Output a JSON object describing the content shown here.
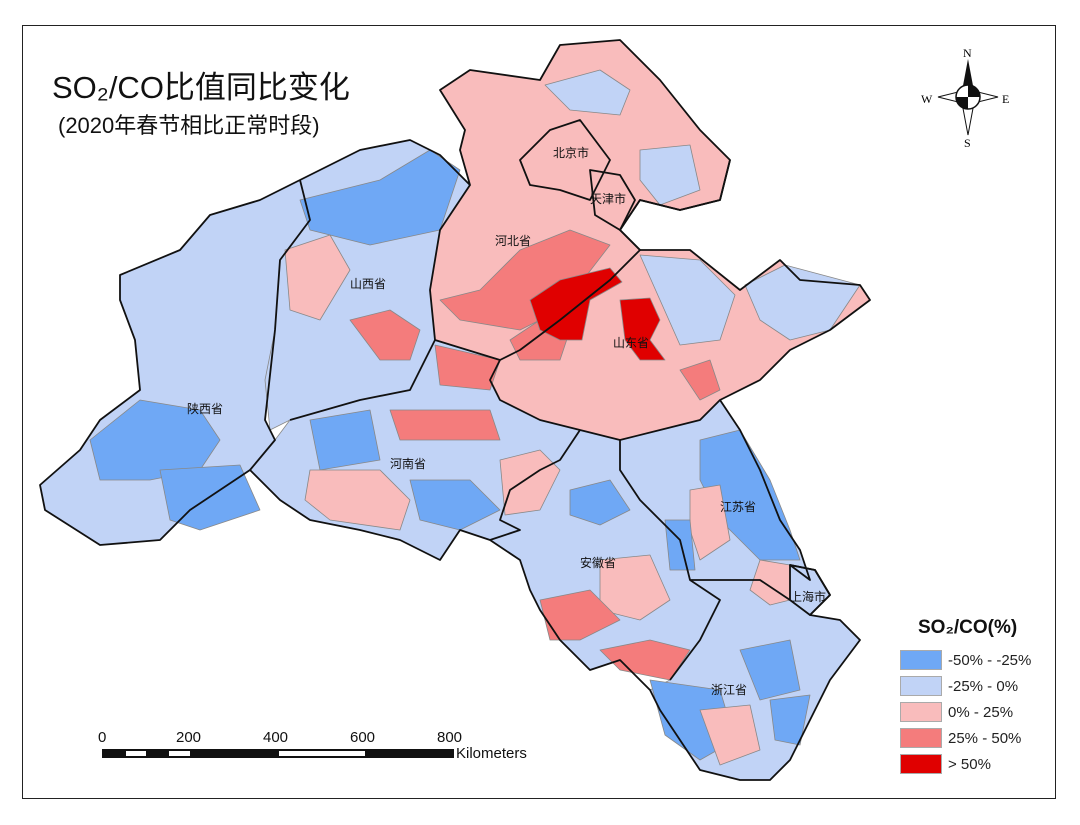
{
  "title": "SO₂/CO比值同比变化",
  "subtitle": "(2020年春节相比正常时段)",
  "provinces": {
    "beijing": "北京市",
    "tianjin": "天津市",
    "hebei": "河北省",
    "shanxi": "山西省",
    "shandong": "山东省",
    "shaanxi": "陕西省",
    "henan": "河南省",
    "jiangsu": "江苏省",
    "anhui": "安徽省",
    "shanghai": "上海市",
    "zhejiang": "浙江省"
  },
  "compass": {
    "n": "N",
    "s": "S",
    "e": "E",
    "w": "W"
  },
  "legend": {
    "title": "SO₂/CO(%)",
    "items": [
      {
        "label": "-50% - -25%",
        "color": "#6fa8f5"
      },
      {
        "label": "-25% - 0%",
        "color": "#c1d3f6"
      },
      {
        "label": "0% - 25%",
        "color": "#f9bcbc"
      },
      {
        "label": "25% - 50%",
        "color": "#f47c7c"
      },
      {
        "label": "> 50%",
        "color": "#e00000"
      }
    ]
  },
  "scale_bar": {
    "ticks": [
      "0",
      "200",
      "400",
      "600",
      "800"
    ],
    "unit": "Kilometers"
  }
}
